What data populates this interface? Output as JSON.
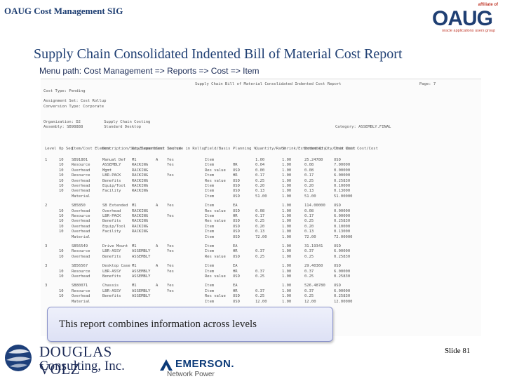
{
  "header": {
    "title": "OAUG Cost Management SIG"
  },
  "logo": {
    "text": "OAUG",
    "affiliate": "affiliate of",
    "tagline": "oracle applications users group"
  },
  "slide_title": "Supply Chain Consolidated Indented Bill of Material Cost Report",
  "menu_path": "Menu path:  Cost Management => Reports  => Cost => Item",
  "report": {
    "heading": "Supply Chain Bill of Material Consolidated Indented Cost Report",
    "page_label": "Page: 7",
    "meta": [
      "Cost Type: Pending",
      "Assignment Set: Cost Rollup",
      "Conversion Type: Corporate",
      "Organization: D2          Supply Chain Costing",
      "Assembly: SB98888         Standard Desktop"
    ],
    "category": "Category: ASSEMBLY.FINAL",
    "columns": [
      "Level",
      "Op Seq",
      "Item/Cost Element",
      "Description/Sub-Element",
      "Org/Department",
      "Cost Source",
      "Include in Rollup",
      "Yield/Basis",
      "Planning %",
      "Quantity/Rate",
      "Shrink/Extended Qty",
      "Extended Qty/Unit Cost",
      "Item Unit Cost/Cost",
      "Extended Cost",
      "Currency Code"
    ],
    "rows": [
      [
        "1",
        "10",
        "SB91801",
        "Manual Def",
        "M1",
        "A",
        "Yes",
        "Item",
        "",
        "1.00",
        "1.00",
        "25.24780",
        "USD"
      ],
      [
        "",
        "10",
        "Resource",
        "ASSEMBLY",
        "RACKING",
        "",
        "Yes",
        "Item",
        "HR",
        "0.04",
        "1.00",
        "0.08",
        "7.00000"
      ],
      [
        "",
        "10",
        "Overhead",
        "Mgmt",
        "RACKING",
        "",
        "",
        "Res value",
        "USD",
        "0.00",
        "1.00",
        "0.08",
        "0.00000"
      ],
      [
        "",
        "10",
        "Resource",
        "LBR-PACK",
        "RACKING",
        "",
        "Yes",
        "Item",
        "HR",
        "0.17",
        "1.00",
        "0.17",
        "6.00000"
      ],
      [
        "",
        "10",
        "Overhead",
        "Benefits",
        "RACKING",
        "",
        "",
        "Res value",
        "USD",
        "0.25",
        "1.00",
        "0.25",
        "0.25830"
      ],
      [
        "",
        "10",
        "Overhead",
        "Equip/Tool",
        "RACKING",
        "",
        "",
        "Item",
        "USD",
        "0.20",
        "1.00",
        "0.20",
        "0.10000"
      ],
      [
        "",
        "10",
        "Overhead",
        "Facility",
        "RACKING",
        "",
        "",
        "Item",
        "USD",
        "0.13",
        "1.00",
        "0.13",
        "0.13000"
      ],
      [
        "",
        "",
        "Material",
        "",
        "",
        "",
        "",
        "Item",
        "USD",
        "51.00",
        "1.00",
        "51.00",
        "51.00000"
      ],
      [
        "2",
        "",
        "SB5850",
        "SB Extended",
        "M1",
        "A",
        "Yes",
        "Item",
        "EA",
        "",
        "1.00",
        "114.00000",
        "USD"
      ],
      [
        "",
        "10",
        "Overhead",
        "Overhead",
        "RACKING",
        "",
        "",
        "Res value",
        "USD",
        "0.08",
        "1.00",
        "0.08",
        "0.00000"
      ],
      [
        "",
        "10",
        "Resource",
        "LBR-PACK",
        "RACKING",
        "",
        "Yes",
        "Item",
        "HR",
        "0.17",
        "1.00",
        "0.17",
        "6.00000"
      ],
      [
        "",
        "10",
        "Overhead",
        "Benefits",
        "RACKING",
        "",
        "",
        "Res value",
        "USD",
        "0.25",
        "1.00",
        "0.25",
        "0.25830"
      ],
      [
        "",
        "10",
        "Overhead",
        "Equip/Tool",
        "RACKING",
        "",
        "",
        "Item",
        "USD",
        "0.20",
        "1.00",
        "0.20",
        "0.10000"
      ],
      [
        "",
        "10",
        "Overhead",
        "Facility",
        "RACKING",
        "",
        "",
        "Item",
        "USD",
        "0.13",
        "1.00",
        "0.13",
        "0.13000"
      ],
      [
        "",
        "",
        "Material",
        "",
        "",
        "",
        "",
        "Item",
        "USD",
        "72.00",
        "1.00",
        "72.00",
        "72.00000"
      ],
      [
        "3",
        "",
        "SB56549",
        "Drive Mount",
        "M1",
        "A",
        "Yes",
        "Item",
        "EA",
        "",
        "1.00",
        "31.19341",
        "USD"
      ],
      [
        "",
        "10",
        "Resource",
        "LBR-ASSY",
        "ASSEMBLY",
        "",
        "Yes",
        "Item",
        "HR",
        "0.37",
        "1.00",
        "0.37",
        "6.00000"
      ],
      [
        "",
        "10",
        "Overhead",
        "Benefits",
        "ASSEMBLY",
        "",
        "",
        "Res value",
        "USD",
        "0.25",
        "1.00",
        "0.25",
        "0.25830"
      ],
      [
        "3",
        "",
        "SB56567",
        "Desktop Case",
        "M1",
        "A",
        "Yes",
        "Item",
        "EA",
        "",
        "1.00",
        "29.40360",
        "USD"
      ],
      [
        "",
        "10",
        "Resource",
        "LBR-ASSY",
        "ASSEMBLY",
        "",
        "Yes",
        "Item",
        "HR",
        "0.37",
        "1.00",
        "0.37",
        "6.00000"
      ],
      [
        "",
        "10",
        "Overhead",
        "Benefits",
        "ASSEMBLY",
        "",
        "",
        "Res value",
        "USD",
        "0.25",
        "1.00",
        "0.25",
        "0.25830"
      ],
      [
        "3",
        "",
        "SB80071",
        "Chassis",
        "M1",
        "A",
        "Yes",
        "Item",
        "EA",
        "",
        "1.00",
        "526.48780",
        "USD"
      ],
      [
        "",
        "10",
        "Resource",
        "LBR-ASSY",
        "ASSEMBLY",
        "",
        "Yes",
        "Item",
        "HR",
        "0.37",
        "1.00",
        "0.37",
        "6.00000"
      ],
      [
        "",
        "10",
        "Overhead",
        "Benefits",
        "ASSEMBLY",
        "",
        "",
        "Res value",
        "USD",
        "0.25",
        "1.00",
        "0.25",
        "0.25830"
      ],
      [
        "",
        "",
        "Material",
        "",
        "",
        "",
        "",
        "Item",
        "USD",
        "12.00",
        "1.00",
        "12.00",
        "12.00000"
      ]
    ]
  },
  "callout": "This report combines information across levels",
  "footer": {
    "company_line1": "DOUGLAS VOLZ",
    "company_line2": "Consulting, Inc.",
    "partner_name": "EMERSON.",
    "partner_sub": "Network Power",
    "slide_number": "Slide 81"
  },
  "colors": {
    "title": "#1f3f73",
    "callout_border": "#8b93c9",
    "accent_red": "#c0392b"
  },
  "icons": {
    "dv_logo": "sphere-logo-icon",
    "emerson_logo": "emerson-mark-icon"
  }
}
